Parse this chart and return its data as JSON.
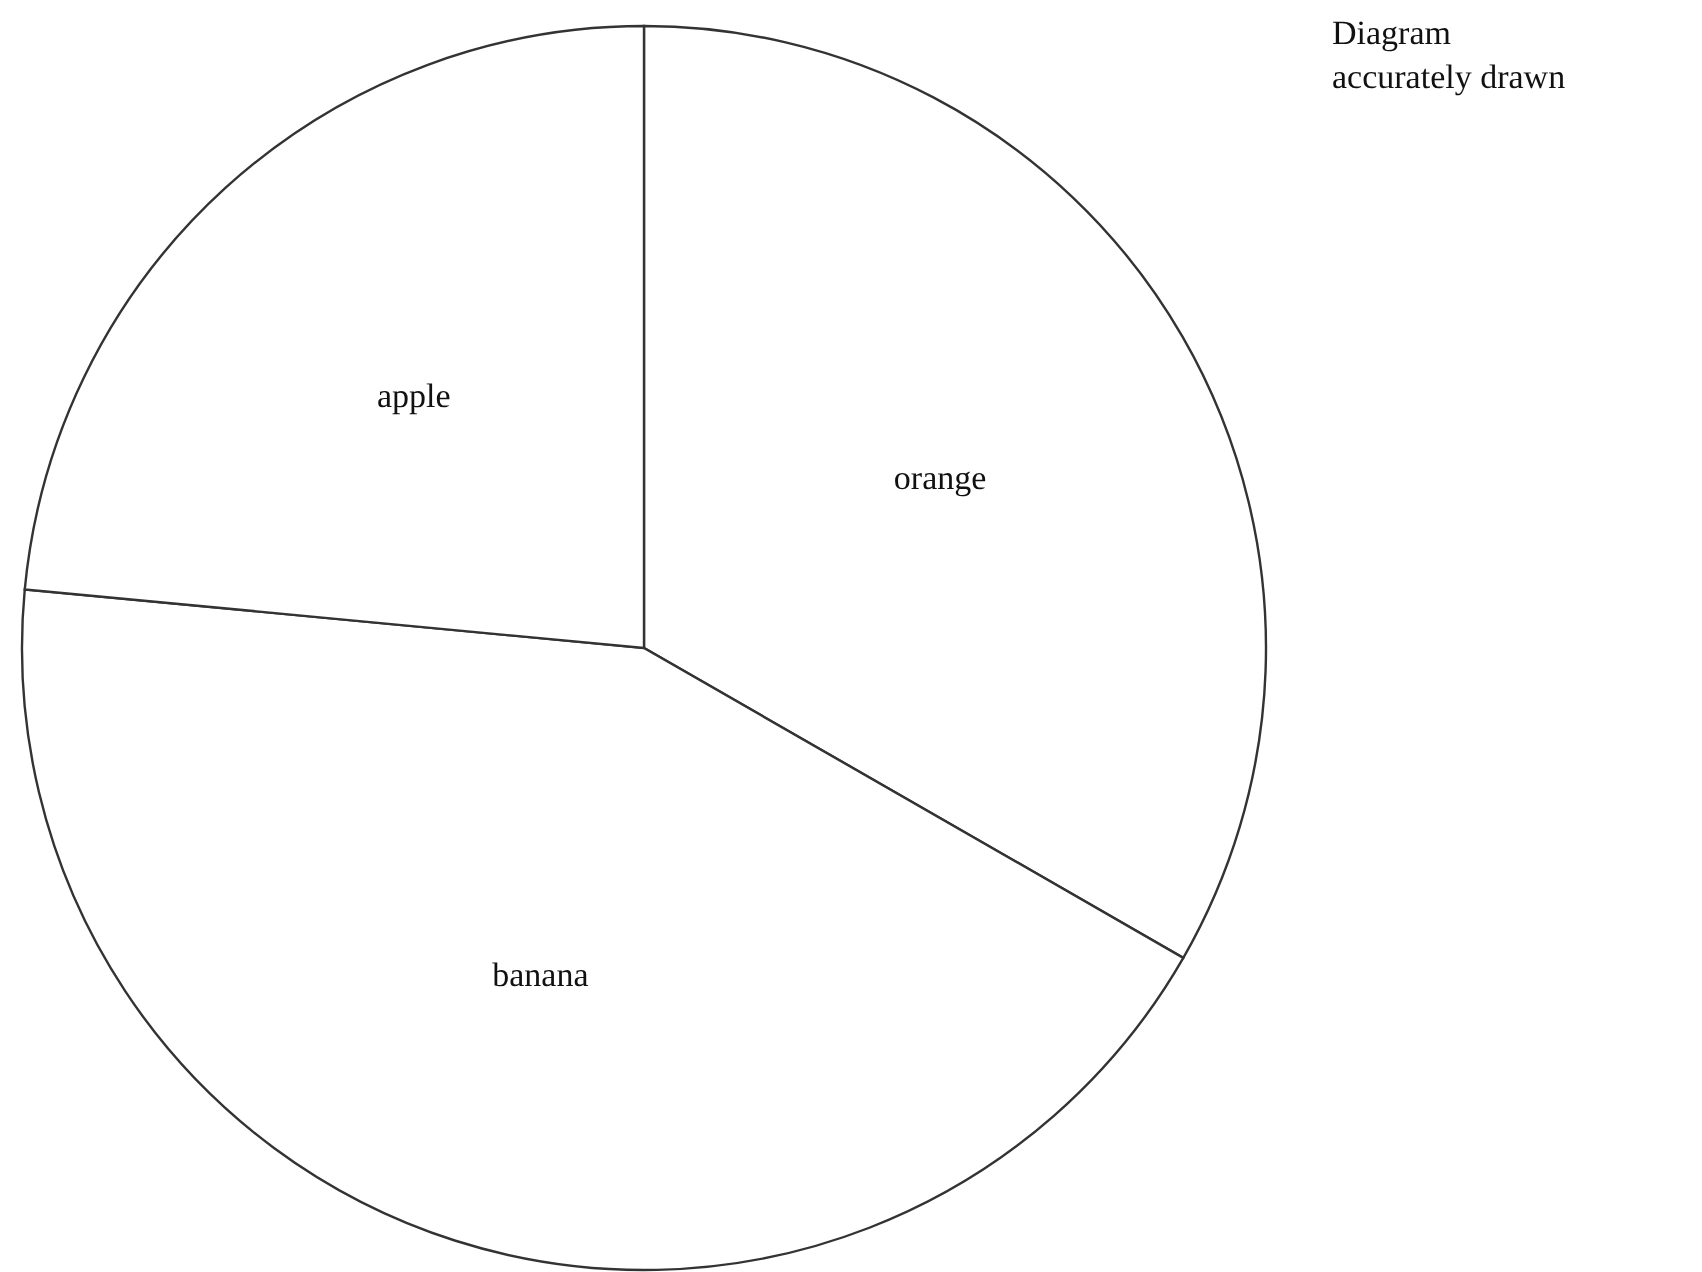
{
  "chart_data": {
    "type": "pie",
    "categories": [
      "orange",
      "banana",
      "apple"
    ],
    "values": [
      33.3,
      43.2,
      23.5
    ],
    "colors": [
      "#ffffff",
      "#ffffff",
      "#ffffff"
    ],
    "annotations": [
      "Diagram accurately drawn"
    ]
  }
}
